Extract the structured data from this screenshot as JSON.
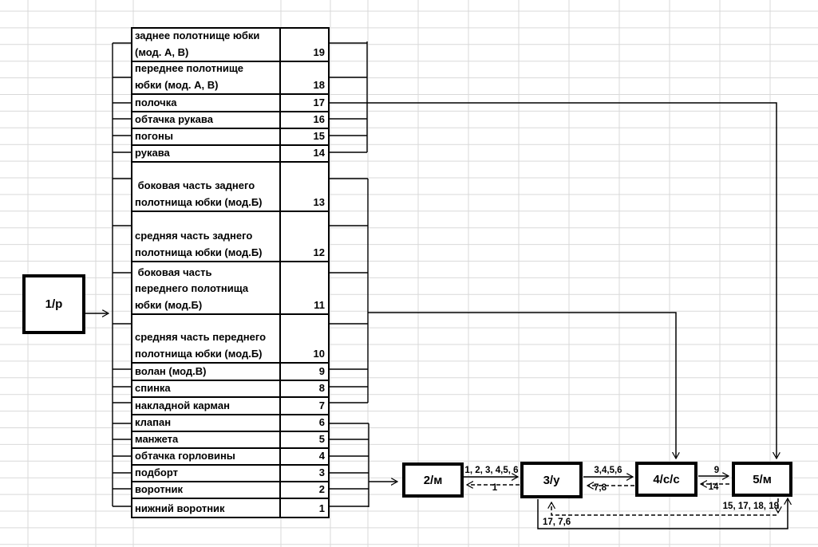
{
  "diagram": {
    "source_node": {
      "label": "1/р"
    },
    "parts_table": {
      "rows": [
        {
          "name": "заднее полотнище юбки\n(мод. А, В)",
          "number": "19"
        },
        {
          "name": "переднее полотнище\nюбки (мод. А, В)",
          "number": "18"
        },
        {
          "name": "полочка",
          "number": "17"
        },
        {
          "name": "обтачка рукава",
          "number": "16"
        },
        {
          "name": "погоны",
          "number": "15"
        },
        {
          "name": "рукава",
          "number": "14"
        },
        {
          "name": " боковая часть заднего\nполотнища юбки (мод.Б)",
          "number": "13"
        },
        {
          "name": "средняя часть заднего\nполотнища юбки (мод.Б)",
          "number": "12"
        },
        {
          "name": " боковая часть\nпереднего полотнища\nюбки (мод.Б)",
          "number": "11"
        },
        {
          "name": "средняя часть переднего\nполотнища юбки (мод.Б)",
          "number": "10"
        },
        {
          "name": "волан (мод.В)",
          "number": "9"
        },
        {
          "name": "спинка",
          "number": "8"
        },
        {
          "name": "накладной карман",
          "number": "7"
        },
        {
          "name": "клапан",
          "number": "6"
        },
        {
          "name": "манжета",
          "number": "5"
        },
        {
          "name": "обтачка горловины",
          "number": "4"
        },
        {
          "name": "подборт",
          "number": "3"
        },
        {
          "name": "воротник",
          "number": "2"
        },
        {
          "name": "нижний воротник",
          "number": "1"
        }
      ]
    },
    "process_nodes": [
      {
        "label": "2/м"
      },
      {
        "label": "3/у"
      },
      {
        "label": "4/с/с"
      },
      {
        "label": "5/м"
      }
    ],
    "edge_labels": {
      "n2_to_n3": "1, 2, 3, 4,5, 6",
      "n3_to_n2": "1",
      "n3_to_n4": "3,4,5,6",
      "n4_to_n3": "7,8",
      "n4_to_n5": "9",
      "n5_to_n4": "14",
      "n3_to_n5_loop": "17, 7,6",
      "n5_to_n3_loop": "15, 17, 18, 19"
    },
    "colors": {
      "line": "#000000",
      "gridline": "#d9d9d9",
      "background": "#ffffff"
    }
  }
}
